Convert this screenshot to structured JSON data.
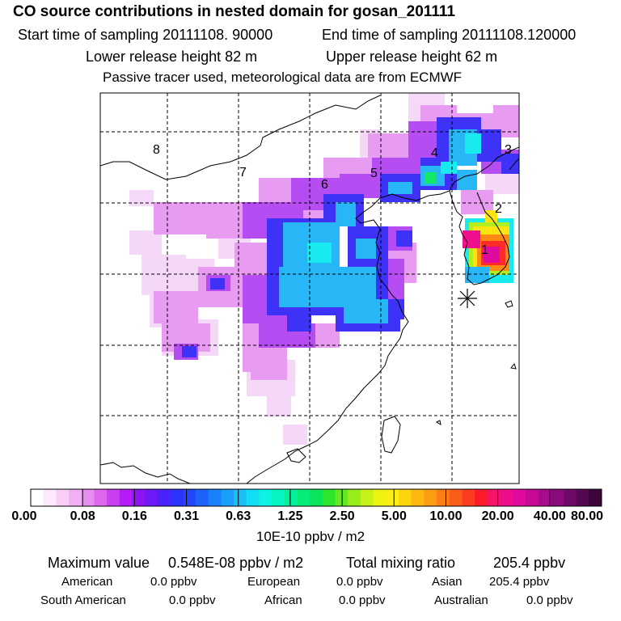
{
  "header": {
    "title": "CO  source contributions in nested domain for gosan_201111",
    "start_label": "Start time of sampling 20111108. 90000",
    "end_label": "End time of sampling 20111108.120000",
    "lower_label": "Lower release height   82 m",
    "upper_label": "Upper release height   62 m",
    "note": "Passive tracer used, meteorological data are from ECMWF"
  },
  "map": {
    "region_labels": [
      "1",
      "2",
      "3",
      "4",
      "5",
      "6",
      "7",
      "8"
    ],
    "receptor_marker": "asterisk-marker"
  },
  "colorbar": {
    "labels": [
      "0.00",
      "0.08",
      "0.16",
      "0.31",
      "0.63",
      "1.25",
      "2.50",
      "5.00",
      "10.00",
      "20.00",
      "40.00",
      "80.00"
    ],
    "unit": "10E-10 ppbv / m2",
    "colors": [
      "#ffffff",
      "#fde8fd",
      "#f8cdf8",
      "#f2b0f4",
      "#e98cf1",
      "#dd66ee",
      "#c93ff0",
      "#b51cf5",
      "#8e14f7",
      "#6c1af9",
      "#4a22fb",
      "#2c33fc",
      "#2246fd",
      "#1c62fd",
      "#1b80fb",
      "#1aa0f9",
      "#1abff7",
      "#12ddf2",
      "#0cf3e4",
      "#08f4c0",
      "#06f09c",
      "#06ec78",
      "#0ae458",
      "#2ce62e",
      "#63ea20",
      "#98ee1c",
      "#c6f218",
      "#eef412",
      "#fcee10",
      "#fcd510",
      "#fcb710",
      "#fc9c12",
      "#fc7c16",
      "#fc5c1a",
      "#fc3c22",
      "#fc1a2c",
      "#f7126a",
      "#ef0c8e",
      "#e00a9e",
      "#c60a96",
      "#a80c8c",
      "#8a0c7c",
      "#6e0a66",
      "#54084f",
      "#3c063a"
    ]
  },
  "stats": {
    "max_label": "Maximum value",
    "max_value": "0.548E-08 ppbv / m2",
    "total_label": "Total mixing ratio",
    "total_value": "205.4 ppbv",
    "american": "American",
    "american_value": "0.0 ppbv",
    "european": "European",
    "european_value": "0.0 ppbv",
    "asian": "Asian",
    "asian_value": "205.4 ppbv",
    "south_american": "South American",
    "south_american_value": "0.0 ppbv",
    "african": "African",
    "african_value": "0.0 ppbv",
    "australian": "Australian",
    "australian_value": "0.0 ppbv"
  }
}
